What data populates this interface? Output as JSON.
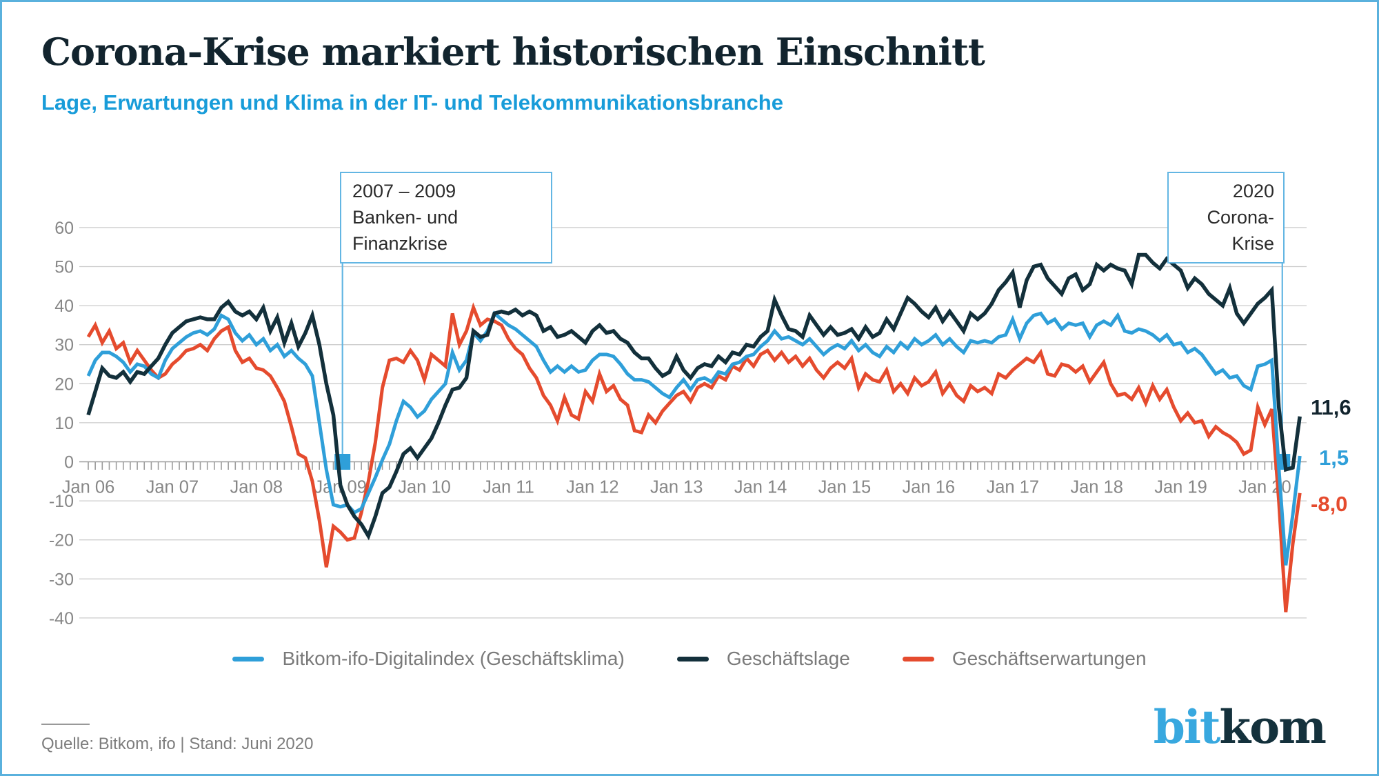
{
  "header": {
    "title": "Corona-Krise markiert historischen Einschnitt",
    "subtitle": "Lage, Erwartungen und Klima in der IT- und Telekommunikationsbranche"
  },
  "colors": {
    "frame_border": "#5ab1dd",
    "subtitle_blue": "#189cd9",
    "title_dark": "#12242e",
    "klima_blue": "#2f9fd9",
    "lage_dark": "#13303b",
    "erwartungen_red": "#e54b2e",
    "annotation_blue": "#63b6e3",
    "grid_gray": "#cccccc",
    "axis_gray": "#9b9b9b",
    "label_gray": "#878787"
  },
  "annotations": {
    "finanzkrise": {
      "line1": "2007 – 2009",
      "line2": "Banken- und Finanzkrise",
      "month_index": 36.3
    },
    "corona": {
      "line1": "2020",
      "line2": "Corona-Krise",
      "month_index": 170.5
    }
  },
  "end_labels": {
    "lage": "11,6",
    "klima": "1,5",
    "erwartungen": "-8,0"
  },
  "legend": {
    "items": [
      {
        "label": "Bitkom-ifo-Digitalindex (Geschäftsklima)",
        "color": "#2f9fd9"
      },
      {
        "label": "Geschäftslage",
        "color": "#13303b"
      },
      {
        "label": "Geschäftserwartungen",
        "color": "#e54b2e"
      }
    ]
  },
  "footer": {
    "source": "Quelle: Bitkom, ifo | Stand: Juni 2020"
  },
  "logo": {
    "part1": "bit",
    "part2": "kom"
  },
  "chart_data": {
    "type": "line",
    "frequency": "monthly",
    "x_start": "Jan 2006",
    "x_end": "Jun 2020",
    "categories": [
      "Jan 06",
      "Jan 07",
      "Jan 08",
      "Jan 09",
      "Jan 10",
      "Jan 11",
      "Jan 12",
      "Jan 13",
      "Jan 14",
      "Jan 15",
      "Jan 16",
      "Jan 17",
      "Jan 18",
      "Jan 19",
      "Jan 20"
    ],
    "ylim": [
      -40,
      60
    ],
    "ytick_step": 10,
    "grid": true,
    "legend_position": "bottom",
    "series": [
      {
        "name": "Geschäftserwartungen",
        "color": "#e54b2e",
        "width": 5,
        "last_value_label": "-8,0",
        "values": [
          32,
          35,
          30.5,
          33.5,
          29,
          30.5,
          25.5,
          28.5,
          26,
          23.5,
          21.5,
          22.5,
          25,
          26.5,
          28.5,
          29,
          30,
          28.5,
          31.5,
          33.5,
          34.5,
          28.5,
          25.5,
          26.5,
          24,
          23.5,
          22,
          19,
          15.5,
          9,
          2,
          1,
          -5,
          -15,
          -27,
          -16.5,
          -18,
          -20,
          -19.5,
          -13,
          -5,
          5,
          19,
          26,
          26.5,
          25.5,
          28.5,
          26,
          21,
          27.5,
          26,
          24.5,
          38,
          30,
          33.5,
          39.5,
          35,
          36.5,
          36,
          35,
          31.5,
          29,
          27.5,
          24,
          21.5,
          17,
          14.5,
          10.5,
          16.5,
          12,
          11,
          18,
          15.5,
          22.5,
          18,
          19.5,
          16,
          14.5,
          8,
          7.5,
          12,
          10,
          13,
          15,
          17,
          18,
          15.5,
          19,
          20,
          19,
          22,
          21,
          24.5,
          23.5,
          26.5,
          24.5,
          27.5,
          28.5,
          26,
          28,
          25.5,
          27,
          24.5,
          26.5,
          23.5,
          21.5,
          24,
          25.5,
          24,
          26.5,
          19,
          22.5,
          21,
          20.5,
          23.5,
          18,
          20,
          17.5,
          21.5,
          19.5,
          20.5,
          23,
          17.5,
          20,
          17,
          15.5,
          19.5,
          18,
          19,
          17.5,
          22.5,
          21.5,
          23.5,
          25,
          26.5,
          25.5,
          28,
          22.5,
          22,
          25,
          24.5,
          23,
          24.5,
          20.5,
          23,
          25.5,
          20,
          17,
          17.5,
          16,
          19,
          15,
          19.5,
          16,
          18.5,
          14,
          10.5,
          12.5,
          10,
          10.5,
          6.5,
          9,
          7.5,
          6.5,
          5,
          2,
          3,
          14,
          9.5,
          13.5,
          -10,
          -38.5,
          -21,
          -8
        ]
      },
      {
        "name": "Bitkom-ifo-Digitalindex (Geschäftsklima)",
        "color": "#2f9fd9",
        "width": 5,
        "last_value_label": "1,5",
        "values": [
          22,
          26,
          28,
          28,
          27,
          25.5,
          23,
          25,
          24.5,
          22.5,
          21.5,
          26,
          29,
          30.5,
          32,
          33,
          33.5,
          32.5,
          34,
          37.5,
          36.5,
          33,
          31,
          32.5,
          30,
          31.5,
          28.5,
          30,
          27,
          28.5,
          26.5,
          25,
          22,
          10,
          -2,
          -11,
          -11.5,
          -11,
          -13,
          -12,
          -8,
          -4,
          0.5,
          4.5,
          10.5,
          15.5,
          14,
          11.5,
          13,
          16,
          18,
          20,
          28,
          23.5,
          26,
          33,
          31,
          33.5,
          38,
          36.5,
          35,
          34,
          32.5,
          31,
          29.5,
          26,
          23,
          24.5,
          23,
          24.5,
          23,
          23.5,
          26,
          27.5,
          27.5,
          27,
          25,
          22.5,
          21,
          21,
          20.5,
          19,
          17.5,
          16.5,
          19,
          21,
          18.5,
          21,
          21.5,
          20.5,
          23,
          22.5,
          25,
          25.5,
          27,
          27.5,
          29.5,
          31,
          33.5,
          31.5,
          32,
          31,
          30,
          31.5,
          29.5,
          27.5,
          29,
          30,
          29,
          31,
          28.5,
          30,
          28,
          27,
          29.5,
          28,
          30.5,
          29,
          31.5,
          30,
          31,
          32.5,
          30,
          31.5,
          29.5,
          28,
          31,
          30.5,
          31,
          30.5,
          32,
          32.5,
          36.5,
          31.5,
          35.5,
          37.5,
          38,
          35.5,
          36.5,
          34,
          35.5,
          35,
          35.5,
          32,
          35,
          36,
          35,
          37.5,
          33.5,
          33,
          34,
          33.5,
          32.5,
          31,
          32.5,
          30,
          30.5,
          28,
          29,
          27.5,
          25,
          22.5,
          23.5,
          21.5,
          22,
          19.5,
          18.5,
          24.5,
          25,
          26,
          -1.5,
          -26.5,
          -13.5,
          1.5
        ]
      },
      {
        "name": "Geschäftslage",
        "color": "#13303b",
        "width": 5.5,
        "last_value_label": "11,6",
        "values": [
          12,
          18,
          24,
          22,
          21.5,
          23,
          20.5,
          23,
          22.5,
          24.5,
          26.5,
          30,
          33,
          34.5,
          36,
          36.5,
          37,
          36.5,
          36.5,
          39.5,
          41,
          38.5,
          37.5,
          38.5,
          36.5,
          39.5,
          33.5,
          37,
          30.5,
          35.5,
          29.5,
          33,
          37.5,
          30,
          20,
          12,
          -6,
          -11,
          -14,
          -16,
          -19,
          -14,
          -8,
          -6.5,
          -2.5,
          2,
          3.5,
          1,
          3.5,
          6,
          10,
          14.5,
          18.5,
          19,
          21.5,
          33.5,
          32,
          32.5,
          38,
          38.5,
          38,
          39,
          37.5,
          38.5,
          37.5,
          33.5,
          34.5,
          32,
          32.5,
          33.5,
          32,
          30.5,
          33.5,
          35,
          33,
          33.5,
          31.5,
          30.5,
          28,
          26.5,
          26.5,
          24,
          22,
          23,
          27,
          23.5,
          21.5,
          24,
          25,
          24.5,
          27,
          25.5,
          28,
          27.5,
          30,
          29.5,
          32,
          33.5,
          41.5,
          37.5,
          34,
          33.5,
          32,
          37.5,
          35,
          32.5,
          34.5,
          32.5,
          33,
          34,
          31.5,
          34.5,
          32,
          33,
          36.5,
          34,
          38,
          42,
          40.5,
          38.5,
          37,
          39.5,
          36,
          38.5,
          36,
          33.5,
          38,
          36.5,
          38,
          40.5,
          44,
          46,
          48.5,
          39.5,
          46.5,
          50,
          50.5,
          47,
          45,
          43,
          47,
          48,
          44,
          45.5,
          50.5,
          49,
          50.5,
          49.5,
          49,
          45.5,
          53,
          53,
          51,
          49.5,
          52,
          50.5,
          49,
          44.5,
          47,
          45.5,
          43,
          41.5,
          40,
          44.5,
          38,
          35.5,
          38,
          40.5,
          42,
          44,
          14,
          -2,
          -1.5,
          11.6
        ]
      }
    ]
  }
}
